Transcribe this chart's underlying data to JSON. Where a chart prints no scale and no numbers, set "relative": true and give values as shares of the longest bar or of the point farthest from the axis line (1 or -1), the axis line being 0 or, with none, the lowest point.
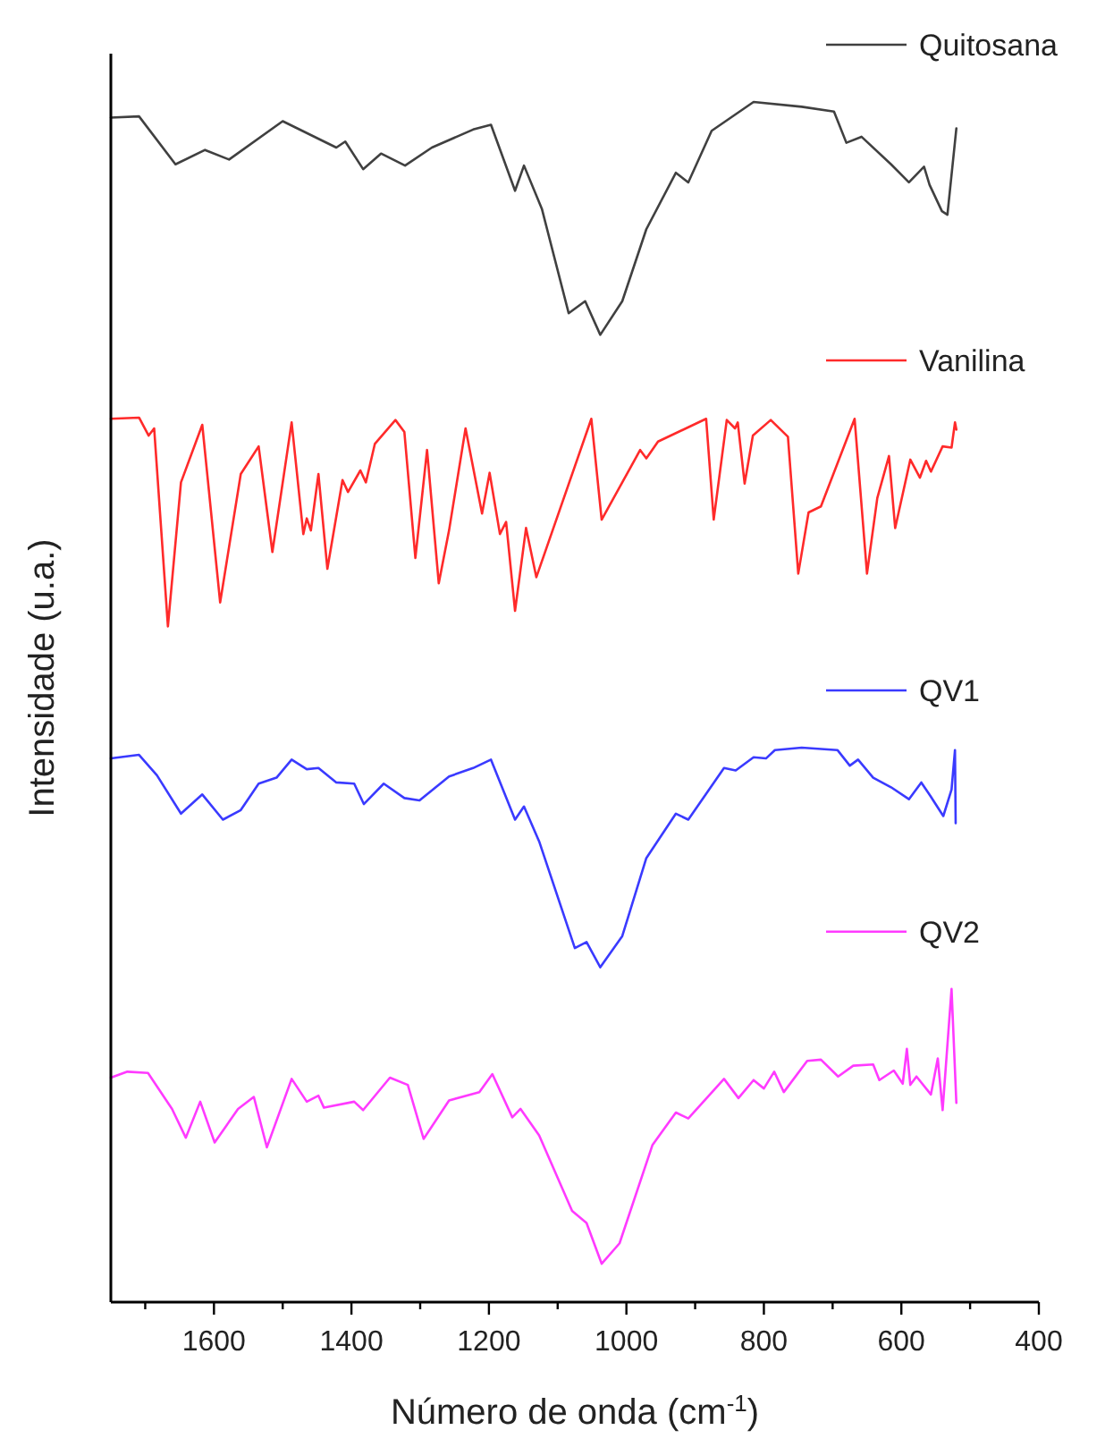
{
  "chart_data": {
    "type": "line",
    "relative": true,
    "xlabel": "Número de onda (cm$^{-1}$)",
    "ylabel": "Intensidade (u.a.)",
    "xlim": [
      1750,
      400
    ],
    "xticks": [
      {
        "value": 1700,
        "label": null
      },
      1600,
      {
        "value": 1500,
        "label": null
      },
      1400,
      {
        "value": 1300,
        "label": null
      },
      1200,
      {
        "value": 1100,
        "label": null
      },
      1000,
      {
        "value": 900,
        "label": null
      },
      800,
      {
        "value": 700,
        "label": null
      },
      600,
      {
        "value": 500,
        "label": null
      },
      400
    ],
    "legend": "right",
    "grid": false,
    "line_style": "solid",
    "series": [
      {
        "name": "Quitosana",
        "color": "#404040",
        "x": [
          1750,
          1709,
          1656,
          1613,
          1578,
          1500,
          1422,
          1409,
          1383,
          1357,
          1322,
          1283,
          1223,
          1197,
          1162,
          1149,
          1123,
          1084,
          1060,
          1038,
          1006,
          971,
          928,
          910,
          876,
          815,
          745,
          698,
          680,
          658,
          615,
          589,
          567,
          559,
          541,
          533,
          520
        ],
        "values": [
          0.987,
          0.988,
          0.948,
          0.96,
          0.952,
          0.984,
          0.962,
          0.967,
          0.944,
          0.957,
          0.947,
          0.962,
          0.977,
          0.981,
          0.926,
          0.947,
          0.911,
          0.824,
          0.834,
          0.806,
          0.834,
          0.894,
          0.941,
          0.933,
          0.976,
          1.0,
          0.996,
          0.992,
          0.966,
          0.971,
          0.948,
          0.933,
          0.946,
          0.931,
          0.909,
          0.906,
          0.978
        ]
      },
      {
        "name": "Vanilina",
        "color": "#ff2a2a",
        "x": [
          1750,
          1709,
          1695,
          1687,
          1667,
          1648,
          1617,
          1591,
          1561,
          1535,
          1515,
          1487,
          1470,
          1465,
          1459,
          1448,
          1435,
          1413,
          1405,
          1387,
          1379,
          1366,
          1336,
          1323,
          1307,
          1290,
          1273,
          1258,
          1234,
          1210,
          1199,
          1184,
          1175,
          1162,
          1146,
          1131,
          1051,
          1036,
          980,
          971,
          954,
          884,
          873,
          854,
          842,
          838,
          828,
          816,
          790,
          765,
          750,
          735,
          717,
          668,
          650,
          635,
          618,
          609,
          587,
          573,
          564,
          557,
          540,
          527,
          522,
          520
        ],
        "values": [
          0.736,
          0.737,
          0.722,
          0.728,
          0.563,
          0.683,
          0.731,
          0.583,
          0.69,
          0.713,
          0.625,
          0.733,
          0.64,
          0.653,
          0.643,
          0.69,
          0.611,
          0.685,
          0.675,
          0.693,
          0.683,
          0.715,
          0.735,
          0.725,
          0.62,
          0.71,
          0.599,
          0.643,
          0.728,
          0.657,
          0.691,
          0.64,
          0.65,
          0.576,
          0.645,
          0.604,
          0.736,
          0.652,
          0.71,
          0.703,
          0.717,
          0.736,
          0.652,
          0.735,
          0.728,
          0.733,
          0.682,
          0.722,
          0.735,
          0.721,
          0.607,
          0.658,
          0.663,
          0.736,
          0.607,
          0.67,
          0.705,
          0.645,
          0.702,
          0.687,
          0.701,
          0.692,
          0.713,
          0.712,
          0.733,
          0.727
        ]
      },
      {
        "name": "QV1",
        "color": "#3a3aff",
        "x": [
          1750,
          1709,
          1683,
          1648,
          1617,
          1587,
          1561,
          1535,
          1509,
          1487,
          1465,
          1448,
          1422,
          1396,
          1382,
          1353,
          1323,
          1301,
          1258,
          1223,
          1197,
          1162,
          1149,
          1127,
          1075,
          1058,
          1038,
          1006,
          971,
          928,
          910,
          858,
          841,
          815,
          797,
          784,
          745,
          693,
          675,
          663,
          641,
          615,
          589,
          571,
          558,
          539,
          527,
          522,
          521
        ],
        "values": [
          0.453,
          0.456,
          0.439,
          0.407,
          0.423,
          0.402,
          0.41,
          0.432,
          0.437,
          0.452,
          0.444,
          0.445,
          0.433,
          0.432,
          0.415,
          0.432,
          0.42,
          0.418,
          0.438,
          0.445,
          0.452,
          0.402,
          0.413,
          0.384,
          0.295,
          0.3,
          0.279,
          0.305,
          0.37,
          0.407,
          0.402,
          0.445,
          0.443,
          0.454,
          0.453,
          0.46,
          0.462,
          0.46,
          0.447,
          0.452,
          0.437,
          0.429,
          0.419,
          0.433,
          0.422,
          0.405,
          0.427,
          0.46,
          0.399
        ]
      },
      {
        "name": "QV2",
        "color": "#ff3aff",
        "x": [
          1750,
          1726,
          1696,
          1661,
          1641,
          1620,
          1599,
          1565,
          1542,
          1523,
          1487,
          1465,
          1448,
          1440,
          1396,
          1383,
          1344,
          1318,
          1295,
          1258,
          1214,
          1195,
          1166,
          1154,
          1127,
          1079,
          1058,
          1036,
          1010,
          962,
          928,
          910,
          858,
          837,
          815,
          800,
          785,
          771,
          737,
          717,
          692,
          670,
          641,
          632,
          611,
          598,
          592,
          587,
          578,
          557,
          547,
          540,
          527,
          520
        ],
        "values": [
          0.187,
          0.192,
          0.191,
          0.161,
          0.137,
          0.167,
          0.133,
          0.161,
          0.171,
          0.129,
          0.186,
          0.167,
          0.172,
          0.162,
          0.167,
          0.16,
          0.187,
          0.181,
          0.136,
          0.168,
          0.175,
          0.19,
          0.154,
          0.161,
          0.139,
          0.076,
          0.066,
          0.032,
          0.049,
          0.131,
          0.158,
          0.153,
          0.186,
          0.17,
          0.185,
          0.178,
          0.192,
          0.175,
          0.201,
          0.202,
          0.188,
          0.197,
          0.198,
          0.185,
          0.193,
          0.182,
          0.211,
          0.181,
          0.188,
          0.173,
          0.203,
          0.16,
          0.261,
          0.166
        ]
      }
    ]
  }
}
